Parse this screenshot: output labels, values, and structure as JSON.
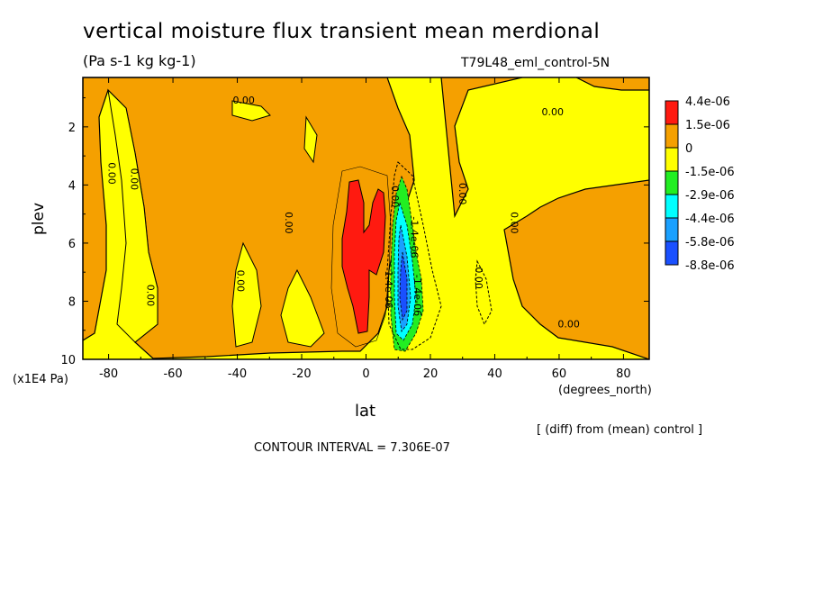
{
  "figure": {
    "title": "vertical moisture flux transient mean merdional",
    "subtitle": "(Pa s-1 kg kg-1)",
    "run_label": "T79L48_eml_control-5N",
    "xlabel": "lat",
    "ylabel": "plev",
    "y_units": "(x1E4 Pa)",
    "x_units": "(degrees_north)",
    "diff_note": "[ (diff) from (mean) control ]",
    "contour_interval": "CONTOUR INTERVAL = 7.306E-07"
  },
  "colors": {
    "red": "#ff1a10",
    "orange": "#f5a000",
    "yellow": "#ffff00",
    "green": "#22ee22",
    "cyan": "#00ffff",
    "lightblue": "#1aa0ff",
    "blue": "#1a50ff"
  },
  "chart_data": {
    "type": "heatmap",
    "title": "vertical moisture flux transient mean merdional",
    "xlabel": "lat",
    "ylabel": "plev",
    "xlim": [
      -88,
      88
    ],
    "ylim": [
      0.3,
      10
    ],
    "y_inverted": true,
    "x_ticks": [
      "-80",
      "-60",
      "-40",
      "-20",
      "0",
      "20",
      "40",
      "60",
      "80"
    ],
    "x_tick_values": [
      -80,
      -60,
      -40,
      -20,
      0,
      20,
      40,
      60,
      80
    ],
    "y_ticks": [
      "2",
      "4",
      "6",
      "8",
      "10"
    ],
    "y_tick_values": [
      2,
      4,
      6,
      8,
      10
    ],
    "legend": {
      "placement": "right",
      "levels": [
        "4.4e-06",
        "1.5e-06",
        "0",
        "-1.5e-06",
        "-2.9e-06",
        "-4.4e-06",
        "-5.8e-06",
        "-8.8e-06"
      ],
      "colors": [
        "#ff1a10",
        "#f5a000",
        "#ffff00",
        "#22ee22",
        "#00ffff",
        "#1aa0ff",
        "#1a50ff"
      ]
    },
    "contour_labels": [
      {
        "text": "0.00",
        "lat": -38,
        "plev": 1.2
      },
      {
        "text": "0.00",
        "lat": 58,
        "plev": 1.6
      },
      {
        "text": "0.00",
        "lat": -80,
        "plev": 3.6
      },
      {
        "text": "0.00",
        "lat": -73,
        "plev": 3.8
      },
      {
        "text": "0.00",
        "lat": 8,
        "plev": 4.4
      },
      {
        "text": "0.00",
        "lat": 29,
        "plev": 4.3
      },
      {
        "text": "0.00",
        "lat": -25,
        "plev": 5.3
      },
      {
        "text": "0.00",
        "lat": 45,
        "plev": 5.3
      },
      {
        "text": "0.00",
        "lat": 34,
        "plev": 7.2
      },
      {
        "text": "0.00",
        "lat": -40,
        "plev": 7.3
      },
      {
        "text": "0.00",
        "lat": -68,
        "plev": 7.8
      },
      {
        "text": "0.00",
        "lat": 63,
        "plev": 8.9
      },
      {
        "text": "-1.4e-06",
        "lat": 14,
        "plev": 5.8
      },
      {
        "text": "-1.4e-06",
        "lat": 15,
        "plev": 7.8
      },
      {
        "text": "1.4e-06",
        "lat": 6,
        "plev": 7.6
      }
    ]
  }
}
